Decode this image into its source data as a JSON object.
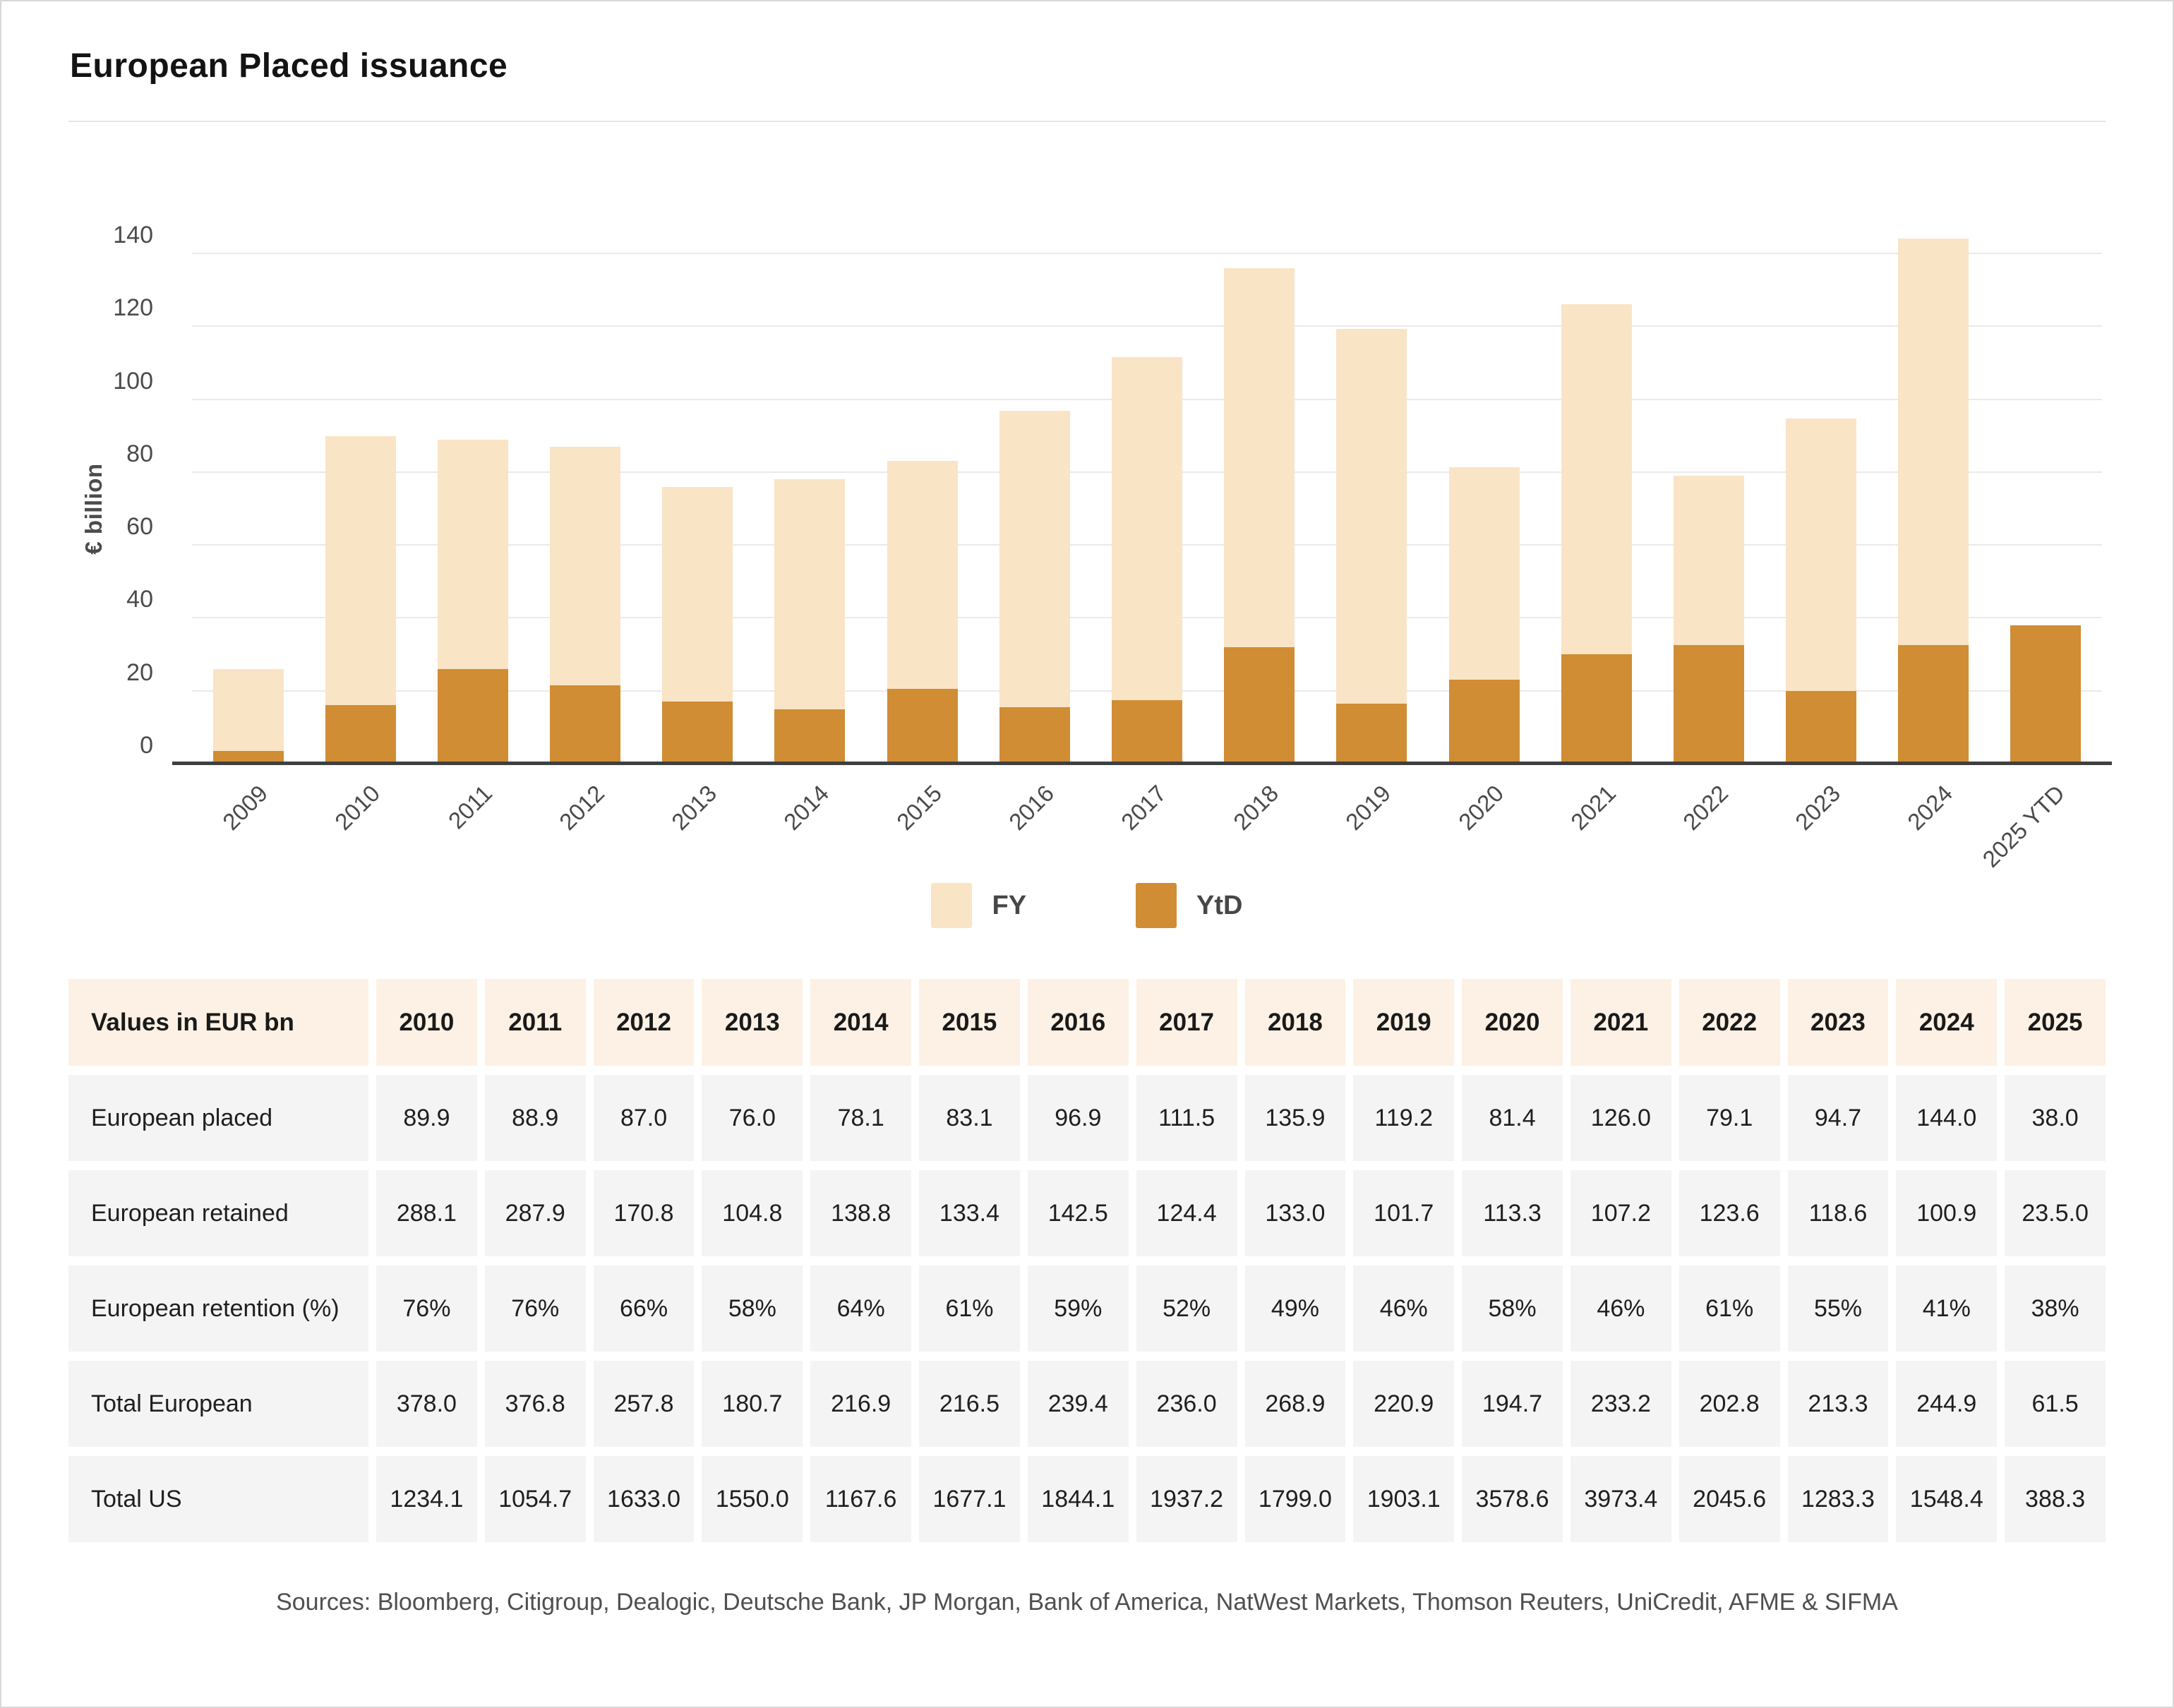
{
  "page": {
    "title": "European Placed issuance",
    "sources": "Sources: Bloomberg, Citigroup, Dealogic, Deutsche Bank, JP Morgan, Bank of America, NatWest Markets, Thomson Reuters, UniCredit, AFME & SIFMA"
  },
  "chart_data": {
    "type": "bar",
    "categories": [
      "2009",
      "2010",
      "2011",
      "2012",
      "2013",
      "2014",
      "2015",
      "2016",
      "2017",
      "2018",
      "2019",
      "2020",
      "2021",
      "2022",
      "2023",
      "2024",
      "2025 YTD"
    ],
    "series": [
      {
        "name": "FY",
        "color": "#fae4c6",
        "values": [
          26,
          89.9,
          88.9,
          87.0,
          76.0,
          78.1,
          83.1,
          96.9,
          111.5,
          135.9,
          119.2,
          81.4,
          126.0,
          79.1,
          94.7,
          144.0,
          null
        ]
      },
      {
        "name": "YtD",
        "color": "#d08d33",
        "values": [
          3.5,
          16,
          26,
          21.5,
          17,
          15,
          20.5,
          15.5,
          17.5,
          32,
          16.5,
          23,
          30,
          32.5,
          20,
          32.5,
          38.0
        ]
      }
    ],
    "title": "European Placed issuance",
    "xlabel": "",
    "ylabel": "€ billion",
    "ylim": [
      0,
      140
    ],
    "ytick_step": 20,
    "grid": true,
    "legend_position": "bottom"
  },
  "table": {
    "header": [
      "Values in EUR bn",
      "2010",
      "2011",
      "2012",
      "2013",
      "2014",
      "2015",
      "2016",
      "2017",
      "2018",
      "2019",
      "2020",
      "2021",
      "2022",
      "2023",
      "2024",
      "2025"
    ],
    "rows": [
      {
        "label": "European placed",
        "values": [
          "89.9",
          "88.9",
          "87.0",
          "76.0",
          "78.1",
          "83.1",
          "96.9",
          "111.5",
          "135.9",
          "119.2",
          "81.4",
          "126.0",
          "79.1",
          "94.7",
          "144.0",
          "38.0"
        ]
      },
      {
        "label": "European retained",
        "values": [
          "288.1",
          "287.9",
          "170.8",
          "104.8",
          "138.8",
          "133.4",
          "142.5",
          "124.4",
          "133.0",
          "101.7",
          "113.3",
          "107.2",
          "123.6",
          "118.6",
          "100.9",
          "23.5.0"
        ]
      },
      {
        "label": "European retention (%)",
        "values": [
          "76%",
          "76%",
          "66%",
          "58%",
          "64%",
          "61%",
          "59%",
          "52%",
          "49%",
          "46%",
          "58%",
          "46%",
          "61%",
          "55%",
          "41%",
          "38%"
        ]
      },
      {
        "label": "Total European",
        "values": [
          "378.0",
          "376.8",
          "257.8",
          "180.7",
          "216.9",
          "216.5",
          "239.4",
          "236.0",
          "268.9",
          "220.9",
          "194.7",
          "233.2",
          "202.8",
          "213.3",
          "244.9",
          "61.5"
        ]
      },
      {
        "label": "Total US",
        "values": [
          "1234.1",
          "1054.7",
          "1633.0",
          "1550.0",
          "1167.6",
          "1677.1",
          "1844.1",
          "1937.2",
          "1799.0",
          "1903.1",
          "3578.6",
          "3973.4",
          "2045.6",
          "1283.3",
          "1548.4",
          "388.3"
        ]
      }
    ]
  }
}
